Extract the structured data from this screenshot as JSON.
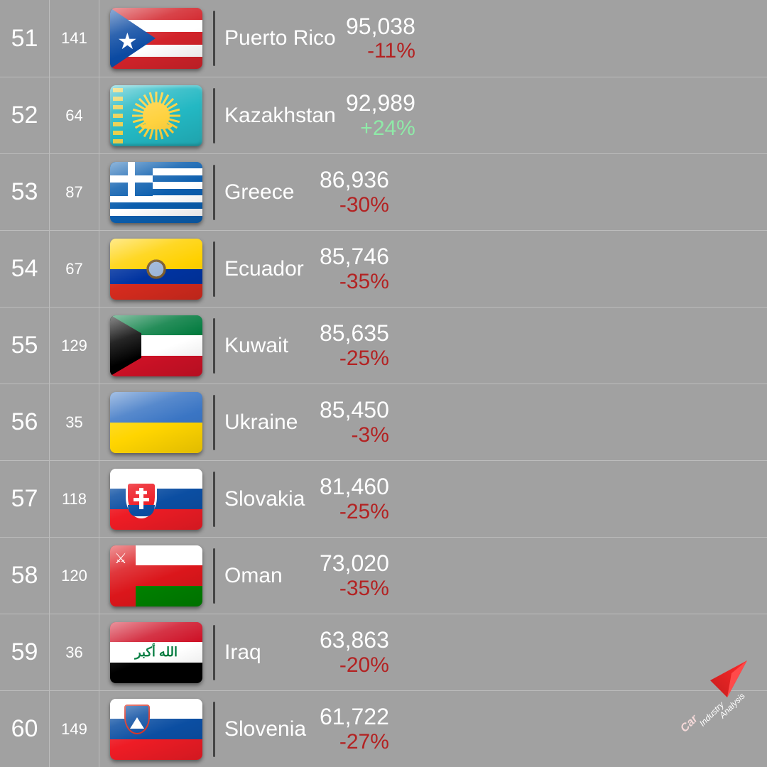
{
  "colors": {
    "background": "#a1a1a1",
    "border": "#bcbcbc",
    "text": "#ffffff",
    "negative": "#b32222",
    "positive": "#8feaa8",
    "divider": "#444444"
  },
  "rows": [
    {
      "rank": "51",
      "sub": "141",
      "country": "Puerto Rico",
      "value": "95,038",
      "change": "-11%",
      "dir": "neg",
      "flag": "pr",
      "wide": true
    },
    {
      "rank": "52",
      "sub": "64",
      "country": "Kazakhstan",
      "value": "92,989",
      "change": "+24%",
      "dir": "pos",
      "flag": "kz",
      "wide": true
    },
    {
      "rank": "53",
      "sub": "87",
      "country": "Greece",
      "value": "86,936",
      "change": "-30%",
      "dir": "neg",
      "flag": "gr"
    },
    {
      "rank": "54",
      "sub": "67",
      "country": "Ecuador",
      "value": "85,746",
      "change": "-35%",
      "dir": "neg",
      "flag": "ec"
    },
    {
      "rank": "55",
      "sub": "129",
      "country": "Kuwait",
      "value": "85,635",
      "change": "-25%",
      "dir": "neg",
      "flag": "kw"
    },
    {
      "rank": "56",
      "sub": "35",
      "country": "Ukraine",
      "value": "85,450",
      "change": "-3%",
      "dir": "neg",
      "flag": "ua"
    },
    {
      "rank": "57",
      "sub": "118",
      "country": "Slovakia",
      "value": "81,460",
      "change": "-25%",
      "dir": "neg",
      "flag": "sk"
    },
    {
      "rank": "58",
      "sub": "120",
      "country": "Oman",
      "value": "73,020",
      "change": "-35%",
      "dir": "neg",
      "flag": "om"
    },
    {
      "rank": "59",
      "sub": "36",
      "country": "Iraq",
      "value": "63,863",
      "change": "-20%",
      "dir": "neg",
      "flag": "iq"
    },
    {
      "rank": "60",
      "sub": "149",
      "country": "Slovenia",
      "value": "61,722",
      "change": "-27%",
      "dir": "neg",
      "flag": "si"
    }
  ],
  "logo": {
    "line1": "Car",
    "line2": "Industry",
    "line3": "Analysis",
    "arrow_color": "#e11b1b"
  }
}
